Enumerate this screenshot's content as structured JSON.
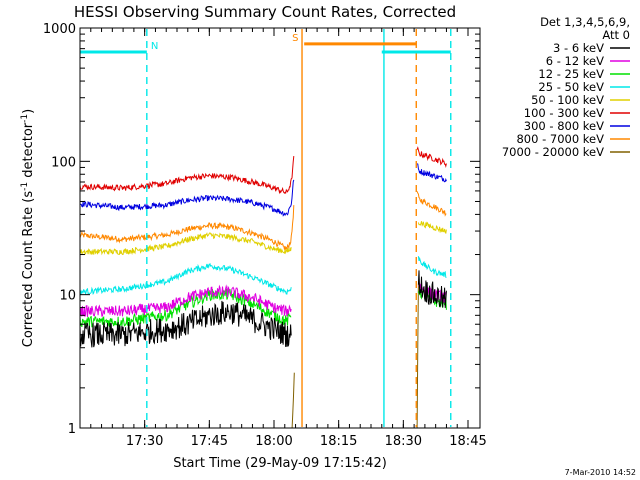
{
  "chart_data": {
    "type": "line",
    "title": "HESSI Observing Summary Count Rates, Corrected",
    "xlabel": "Start Time (29-May-09 17:15:42)",
    "ylabel_main": "Corrected Count Rate (s",
    "ylabel_sup1": "-1",
    "ylabel_mid": " detector",
    "ylabel_sup2": "-1",
    "ylabel_end": ")",
    "x_unit": "minutes after 17:15:42",
    "xlim": [
      0,
      90
    ],
    "ylim": [
      1,
      1000
    ],
    "log_y": true,
    "grid": false,
    "x_ticks": [
      {
        "label": "17:30",
        "x": 15
      },
      {
        "label": "17:45",
        "x": 30
      },
      {
        "label": "18:00",
        "x": 45
      },
      {
        "label": "18:15",
        "x": 60
      },
      {
        "label": "18:30",
        "x": 75
      },
      {
        "label": "18:45",
        "x": 90
      }
    ],
    "y_ticks": [
      {
        "label": "1000",
        "y": 1000
      },
      {
        "label": "100",
        "y": 100
      },
      {
        "label": "10",
        "y": 10
      },
      {
        "label": "1",
        "y": 1
      }
    ],
    "legend": {
      "placement": "outside-right",
      "header_line1": "Det 1,3,4,5,6,9,",
      "header_line2": "Att 0",
      "entries": [
        {
          "label": "3 - 6 keV",
          "color": "#000000"
        },
        {
          "label": "6 - 12 keV",
          "color": "#e000e0"
        },
        {
          "label": "12 - 25 keV",
          "color": "#00e000"
        },
        {
          "label": "25 - 50 keV",
          "color": "#00e8e8"
        },
        {
          "label": "50 - 100 keV",
          "color": "#e0d000"
        },
        {
          "label": "100 - 300 keV",
          "color": "#e00000"
        },
        {
          "label": "300 - 800 keV",
          "color": "#0000e0"
        },
        {
          "label": "800 - 7000 keV",
          "color": "#ff8800"
        },
        {
          "label": "7000 - 20000 keV",
          "color": "#806000"
        }
      ]
    },
    "series": [
      {
        "color": "#000000",
        "segments": [
          {
            "x": [
              0,
              10,
              20,
              25,
              30,
              35,
              40,
              45,
              48,
              49
            ],
            "y": [
              5,
              5,
              5.5,
              6,
              7,
              7.5,
              6.5,
              5.5,
              5,
              5
            ]
          },
          {
            "x": [
              78.5,
              79.5,
              82,
              85
            ],
            "y": [
              13,
              11,
              10,
              9
            ]
          }
        ]
      },
      {
        "color": "#e000e0",
        "segments": [
          {
            "x": [
              0,
              10,
              20,
              25,
              30,
              35,
              40,
              45,
              48,
              49
            ],
            "y": [
              7.5,
              7.5,
              8,
              9.5,
              10.5,
              10.5,
              9.5,
              8,
              7.5,
              8
            ]
          },
          {
            "x": [
              78.5,
              79.5,
              82,
              85
            ],
            "y": [
              12,
              11,
              10,
              9.5
            ]
          }
        ]
      },
      {
        "color": "#00e000",
        "segments": [
          {
            "x": [
              0,
              10,
              20,
              25,
              30,
              35,
              40,
              45,
              48,
              49
            ],
            "y": [
              6.3,
              6.3,
              7,
              8.5,
              10,
              10,
              8.5,
              7,
              6.3,
              7
            ]
          },
          {
            "x": [
              78.5,
              79.5,
              82,
              85
            ],
            "y": [
              11,
              10,
              9,
              8.5
            ]
          }
        ]
      },
      {
        "color": "#00e8e8",
        "segments": [
          {
            "x": [
              0,
              10,
              20,
              25,
              30,
              35,
              40,
              45,
              48,
              49
            ],
            "y": [
              10.5,
              11,
              12.5,
              15,
              16.5,
              15.5,
              13.5,
              11.5,
              10.5,
              11
            ]
          },
          {
            "x": [
              78.5,
              79.5,
              82,
              85
            ],
            "y": [
              19,
              17,
              15,
              14
            ]
          }
        ]
      },
      {
        "color": "#e0d000",
        "segments": [
          {
            "x": [
              0,
              10,
              20,
              25,
              30,
              35,
              40,
              45,
              48,
              49
            ],
            "y": [
              21,
              21,
              23,
              26,
              28,
              27,
              25,
              22,
              21,
              22
            ]
          },
          {
            "x": [
              78.5,
              79.5,
              82,
              85
            ],
            "y": [
              35,
              34,
              32,
              30
            ]
          }
        ]
      },
      {
        "color": "#e00000",
        "segments": [
          {
            "x": [
              0,
              10,
              20,
              25,
              30,
              35,
              40,
              45,
              48,
              49,
              49.6
            ],
            "y": [
              65,
              63,
              68,
              75,
              78,
              76,
              70,
              63,
              58,
              70,
              105
            ]
          },
          {
            "x": [
              78.2,
              78.6,
              82,
              85
            ],
            "y": [
              125,
              115,
              105,
              96
            ]
          }
        ]
      },
      {
        "color": "#0000e0",
        "segments": [
          {
            "x": [
              0,
              10,
              20,
              25,
              30,
              35,
              40,
              45,
              48,
              49,
              49.6
            ],
            "y": [
              48,
              45,
              47,
              51,
              53,
              52,
              49,
              44,
              40,
              48,
              75
            ]
          },
          {
            "x": [
              78.2,
              78.6,
              82,
              85
            ],
            "y": [
              95,
              85,
              78,
              73
            ]
          }
        ]
      },
      {
        "color": "#ff8800",
        "segments": [
          {
            "x": [
              0,
              10,
              20,
              25,
              30,
              35,
              40,
              45,
              48,
              49,
              49.6
            ],
            "y": [
              28,
              26,
              28,
              31,
              33,
              32,
              29,
              25,
              22,
              26,
              45
            ]
          },
          {
            "x": [
              78.2,
              78.6,
              82,
              85
            ],
            "y": [
              60,
              52,
              46,
              41
            ]
          }
        ]
      },
      {
        "color": "#806000",
        "segments": [
          {
            "x": [
              49.2,
              49.5,
              49.7
            ],
            "y": [
              1,
              1.6,
              2.6
            ]
          },
          {
            "x": [
              78.2,
              78.3,
              78.5
            ],
            "y": [
              1,
              3,
              12
            ]
          }
        ]
      }
    ],
    "flags": [
      {
        "label": "N",
        "color": "#00e8e8",
        "y": 660,
        "x_start": 0,
        "x_end": 15.5
      },
      {
        "label": "S",
        "color": "#ff8800",
        "y": 760,
        "x_start": 52,
        "x_end": 78
      },
      {
        "label": "",
        "color": "#00e8e8",
        "y": 660,
        "x_start": 70,
        "x_end": 86
      }
    ],
    "vertical_lines": [
      {
        "x": 15.5,
        "color": "#00e8e8",
        "dashed": true
      },
      {
        "x": 51.5,
        "color": "#ff8800",
        "dashed": false
      },
      {
        "x": 70.5,
        "color": "#00e8e8",
        "dashed": false
      },
      {
        "x": 78,
        "color": "#ff8800",
        "dashed": true
      },
      {
        "x": 86,
        "color": "#00e8e8",
        "dashed": true
      }
    ]
  },
  "footer": {
    "timestamp": "7-Mar-2010 14:52"
  }
}
